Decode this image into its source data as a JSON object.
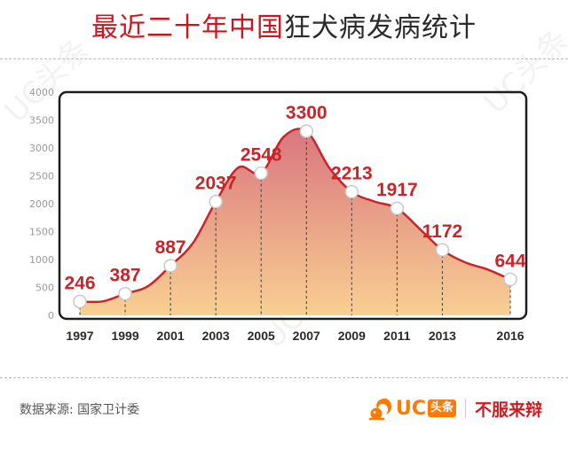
{
  "title": {
    "part1": "最近二十年中国",
    "part2": "狂犬病发病统计"
  },
  "source": "数据来源: 国家卫计委",
  "brand": {
    "name": "UC",
    "tag": "头条",
    "slogan": "不服来辩"
  },
  "watermark": "UC头条",
  "colors": {
    "title_red": "#c8171e",
    "line": "#c8252b",
    "label": "#c8252b",
    "fill_top": "#d9767f",
    "fill_bottom": "#f9cf92",
    "accent": "#ff7a00"
  },
  "chart_data": {
    "type": "area",
    "title": "最近二十年中国狂犬病发病统计",
    "xlabel": "",
    "ylabel": "",
    "ylim": [
      0,
      4000
    ],
    "xlim": [
      1997,
      2016
    ],
    "y_ticks": [
      0,
      500,
      1000,
      1500,
      2000,
      2500,
      3000,
      3500,
      4000
    ],
    "grid": false,
    "legend": "none",
    "points": [
      {
        "x": 1997,
        "y": 246
      },
      {
        "x": 1999,
        "y": 387
      },
      {
        "x": 2001,
        "y": 887
      },
      {
        "x": 2003,
        "y": 2037
      },
      {
        "x": 2005,
        "y": 2548
      },
      {
        "x": 2007,
        "y": 3300
      },
      {
        "x": 2009,
        "y": 2213
      },
      {
        "x": 2011,
        "y": 1917
      },
      {
        "x": 2013,
        "y": 1172
      },
      {
        "x": 2016,
        "y": 644
      }
    ],
    "curve": [
      {
        "x": 1997,
        "y": 246
      },
      {
        "x": 1998,
        "y": 250
      },
      {
        "x": 1999,
        "y": 387
      },
      {
        "x": 2000,
        "y": 520
      },
      {
        "x": 2001,
        "y": 887
      },
      {
        "x": 2002,
        "y": 1300
      },
      {
        "x": 2003,
        "y": 2037
      },
      {
        "x": 2004,
        "y": 2650
      },
      {
        "x": 2005,
        "y": 2548
      },
      {
        "x": 2006,
        "y": 3200
      },
      {
        "x": 2007,
        "y": 3300
      },
      {
        "x": 2008,
        "y": 2650
      },
      {
        "x": 2009,
        "y": 2213
      },
      {
        "x": 2010,
        "y": 2040
      },
      {
        "x": 2011,
        "y": 1917
      },
      {
        "x": 2012,
        "y": 1550
      },
      {
        "x": 2013,
        "y": 1172
      },
      {
        "x": 2014,
        "y": 950
      },
      {
        "x": 2015,
        "y": 820
      },
      {
        "x": 2016,
        "y": 644
      }
    ]
  }
}
